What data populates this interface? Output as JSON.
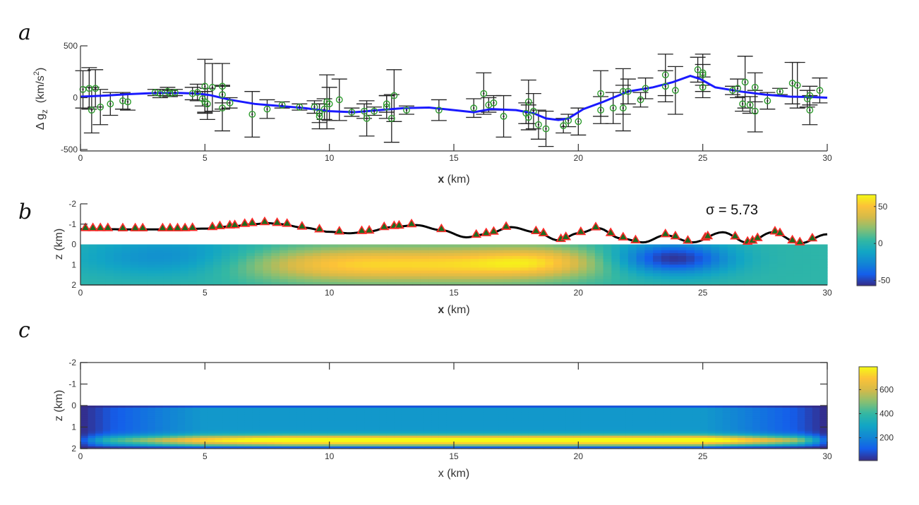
{
  "panel_labels": [
    "a",
    "b",
    "c"
  ],
  "chart_data": [
    {
      "type": "scatter",
      "panel": "a",
      "xlabel_bold": "x",
      "xlabel_rest": " (km)",
      "ylabel_main": "Δ g",
      "ylabel_sub": "z",
      "ylabel_units_pre": "  (km/s",
      "ylabel_units_sup": "2",
      "ylabel_units_post": ")",
      "xlim": [
        0,
        30
      ],
      "ylim": [
        -500,
        500
      ],
      "xticks": [
        "0",
        "5",
        "10",
        "15",
        "20",
        "25",
        "30"
      ],
      "xtick_values": [
        0,
        5,
        10,
        15,
        20,
        25,
        30
      ],
      "yticks": [
        "500",
        "0",
        "-500"
      ],
      "ytick_values": [
        500,
        0,
        -500
      ],
      "line_color": "#1a1aff",
      "marker_color": "#2e9c2e",
      "errorbar_color": "#222222",
      "series": [
        {
          "name": "observed",
          "points": [
            [
              0.1,
              80,
              180
            ],
            [
              0.35,
              90,
              200
            ],
            [
              0.6,
              90,
              180
            ],
            [
              0.45,
              -120,
              220
            ],
            [
              0.8,
              -90,
              170
            ],
            [
              1.2,
              -60,
              110
            ],
            [
              1.7,
              -30,
              80
            ],
            [
              1.9,
              -40,
              80
            ],
            [
              3.0,
              50,
              30
            ],
            [
              3.2,
              40,
              40
            ],
            [
              3.5,
              60,
              40
            ],
            [
              3.8,
              50,
              30
            ],
            [
              3.6,
              40,
              30
            ],
            [
              4.5,
              40,
              60
            ],
            [
              4.7,
              50,
              80
            ],
            [
              4.9,
              -10,
              70
            ],
            [
              5.0,
              -40,
              100
            ],
            [
              5.0,
              110,
              260
            ],
            [
              5.1,
              -60,
              150
            ],
            [
              5.3,
              100,
              230
            ],
            [
              5.7,
              110,
              220
            ],
            [
              5.7,
              30,
              80
            ],
            [
              5.7,
              -100,
              220
            ],
            [
              6.0,
              -50,
              50
            ],
            [
              6.9,
              -160,
              220
            ],
            [
              7.5,
              -110,
              90
            ],
            [
              8.1,
              -70,
              30
            ],
            [
              8.8,
              -90,
              30
            ],
            [
              9.4,
              -90,
              60
            ],
            [
              9.6,
              -150,
              90
            ],
            [
              9.6,
              -180,
              120
            ],
            [
              9.8,
              -110,
              100
            ],
            [
              9.9,
              -40,
              260
            ],
            [
              10.0,
              -60,
              160
            ],
            [
              10.4,
              -20,
              200
            ],
            [
              10.9,
              -140,
              40
            ],
            [
              11.4,
              -130,
              70
            ],
            [
              11.5,
              -200,
              170
            ],
            [
              11.8,
              -130,
              40
            ],
            [
              12.3,
              -60,
              80
            ],
            [
              12.3,
              -90,
              110
            ],
            [
              12.5,
              -200,
              230
            ],
            [
              12.6,
              20,
              250
            ],
            [
              13.1,
              -120,
              40
            ],
            [
              14.4,
              -120,
              100
            ],
            [
              15.8,
              -100,
              90
            ],
            [
              16.2,
              40,
              200
            ],
            [
              16.4,
              -70,
              70
            ],
            [
              16.6,
              -50,
              70
            ],
            [
              17.0,
              -180,
              200
            ],
            [
              17.9,
              -150,
              100
            ],
            [
              18.0,
              -190,
              120
            ],
            [
              18.0,
              -40,
              210
            ],
            [
              18.2,
              -130,
              170
            ],
            [
              18.4,
              -260,
              140
            ],
            [
              18.7,
              -300,
              170
            ],
            [
              19.4,
              -270,
              70
            ],
            [
              19.6,
              -220,
              60
            ],
            [
              20.0,
              -230,
              130
            ],
            [
              20.9,
              -120,
              130
            ],
            [
              20.9,
              40,
              220
            ],
            [
              21.4,
              -100,
              150
            ],
            [
              21.8,
              -100,
              220
            ],
            [
              21.8,
              60,
              220
            ],
            [
              22.0,
              60,
              120
            ],
            [
              22.5,
              -20,
              70
            ],
            [
              22.7,
              90,
              100
            ],
            [
              23.5,
              110,
              150
            ],
            [
              23.5,
              220,
              200
            ],
            [
              23.9,
              70,
              230
            ],
            [
              24.8,
              270,
              120
            ],
            [
              25.0,
              240,
              180
            ],
            [
              25.0,
              220,
              100
            ],
            [
              25.0,
              100,
              100
            ],
            [
              26.2,
              70,
              40
            ],
            [
              26.4,
              90,
              90
            ],
            [
              26.6,
              -60,
              70
            ],
            [
              26.7,
              150,
              250
            ],
            [
              26.9,
              -70,
              80
            ],
            [
              27.1,
              100,
              140
            ],
            [
              27.1,
              -130,
              200
            ],
            [
              27.6,
              -30,
              80
            ],
            [
              28.1,
              60,
              30
            ],
            [
              28.6,
              140,
              200
            ],
            [
              28.8,
              120,
              220
            ],
            [
              29.2,
              -10,
              80
            ],
            [
              29.3,
              20,
              90
            ],
            [
              29.3,
              -120,
              140
            ],
            [
              29.7,
              70,
              120
            ]
          ]
        },
        {
          "name": "model",
          "x": [
            0,
            1,
            2,
            3,
            4,
            4.7,
            5.2,
            6,
            7,
            8,
            9,
            10,
            11,
            12,
            13,
            14,
            15,
            15.8,
            16.5,
            17.5,
            18.2,
            18.7,
            19.2,
            19.6,
            20.2,
            21,
            22,
            23,
            23.8,
            24.5,
            24.9,
            25.5,
            26.5,
            27.5,
            28.5,
            29.5,
            30
          ],
          "y": [
            10,
            20,
            35,
            45,
            45,
            40,
            25,
            -20,
            -60,
            -80,
            -100,
            -130,
            -140,
            -120,
            -100,
            -95,
            -120,
            -140,
            -110,
            -120,
            -150,
            -200,
            -215,
            -200,
            -110,
            -40,
            60,
            100,
            150,
            210,
            180,
            100,
            60,
            30,
            10,
            5,
            0
          ]
        }
      ]
    },
    {
      "type": "heatmap",
      "panel": "b",
      "xlabel_bold": "x",
      "xlabel_rest": " (km)",
      "ylabel": "z (km)",
      "xlim": [
        0,
        30
      ],
      "ylim": [
        -2,
        2
      ],
      "xticks": [
        "0",
        "5",
        "10",
        "15",
        "20",
        "25",
        "30"
      ],
      "xtick_values": [
        0,
        5,
        10,
        15,
        20,
        25,
        30
      ],
      "yticks": [
        "-2",
        "-1",
        "0",
        "1",
        "2"
      ],
      "ytick_values": [
        -2,
        -1,
        0,
        1,
        2
      ],
      "annotation": "σ = 5.73",
      "colorbar": {
        "range": [
          -57,
          66
        ],
        "ticks": [
          "50",
          "0",
          "-50"
        ],
        "tick_values": [
          50,
          0,
          -50
        ]
      },
      "field_blobs": [
        {
          "x": 3.5,
          "z": 0.6,
          "sx": 2.5,
          "sz": 0.7,
          "amp": -25
        },
        {
          "x": 10.5,
          "z": 1.0,
          "sx": 3.0,
          "sz": 0.6,
          "amp": 45
        },
        {
          "x": 16.5,
          "z": 1.0,
          "sx": 3.0,
          "sz": 0.6,
          "amp": 45
        },
        {
          "x": 18.5,
          "z": 0.8,
          "sx": 1.6,
          "sz": 0.5,
          "amp": 20
        },
        {
          "x": 23.8,
          "z": 0.7,
          "sx": 1.6,
          "sz": 0.55,
          "amp": -58
        }
      ],
      "topography": {
        "x": [
          0,
          1,
          2,
          3,
          4,
          5,
          6,
          7,
          7.5,
          8,
          9,
          10,
          10.8,
          11.5,
          12.5,
          13.5,
          14.5,
          15.5,
          16.3,
          17.3,
          18.3,
          19.2,
          20,
          20.8,
          21.7,
          22.6,
          23.5,
          24.6,
          25.8,
          26.8,
          27.8,
          28.9,
          30
        ],
        "z": [
          -0.75,
          -0.75,
          -0.74,
          -0.74,
          -0.74,
          -0.78,
          -0.88,
          -1.0,
          -1.05,
          -1.0,
          -0.82,
          -0.62,
          -0.55,
          -0.62,
          -0.85,
          -0.95,
          -0.7,
          -0.35,
          -0.5,
          -0.85,
          -0.6,
          -0.2,
          -0.55,
          -0.8,
          -0.3,
          -0.1,
          -0.45,
          -0.1,
          -0.6,
          -0.08,
          -0.6,
          -0.05,
          -0.5
        ]
      },
      "stations_x": [
        0.2,
        0.5,
        0.8,
        1.1,
        1.7,
        2.2,
        2.5,
        3.3,
        3.6,
        3.9,
        4.2,
        4.5,
        5.3,
        5.6,
        6.0,
        6.2,
        6.6,
        6.9,
        7.4,
        7.9,
        8.3,
        8.9,
        9.6,
        10.4,
        11.3,
        11.6,
        12.2,
        12.6,
        12.8,
        13.3,
        14.5,
        15.9,
        16.3,
        16.6,
        17.1,
        18.3,
        18.6,
        19.3,
        19.5,
        20.1,
        20.7,
        21.3,
        21.8,
        22.3,
        23.5,
        23.9,
        24.4,
        25.1,
        25.2,
        26.3,
        26.8,
        27.0,
        27.2,
        27.9,
        28.1,
        28.6,
        28.9,
        29.4
      ]
    },
    {
      "type": "heatmap",
      "panel": "c",
      "xlabel": "x (km)",
      "ylabel": "z (km)",
      "xlim": [
        0,
        30
      ],
      "ylim": [
        -2,
        2
      ],
      "xticks": [
        "0",
        "5",
        "10",
        "15",
        "20",
        "25",
        "30"
      ],
      "xtick_values": [
        0,
        5,
        10,
        15,
        20,
        25,
        30
      ],
      "yticks": [
        "-2",
        "-1",
        "0",
        "1",
        "2"
      ],
      "ytick_values": [
        -2,
        -1,
        0,
        1,
        2
      ],
      "colorbar": {
        "range": [
          10,
          790
        ],
        "ticks": [
          "600",
          "400",
          "200"
        ],
        "tick_values": [
          600,
          400,
          200
        ]
      }
    }
  ]
}
